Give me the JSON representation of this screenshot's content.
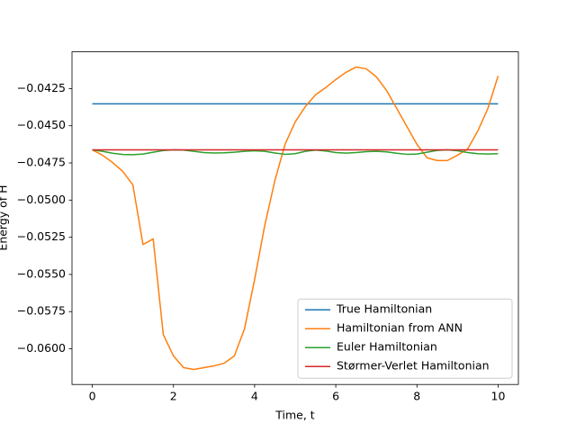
{
  "chart_data": {
    "type": "line",
    "xlabel": "Time, t",
    "ylabel": "Energy of H",
    "x": [
      0,
      0.25,
      0.5,
      0.75,
      1,
      1.25,
      1.5,
      1.75,
      2,
      2.25,
      2.5,
      2.75,
      3,
      3.25,
      3.5,
      3.75,
      4,
      4.25,
      4.5,
      4.75,
      5,
      5.25,
      5.5,
      5.75,
      6,
      6.25,
      6.5,
      6.75,
      7,
      7.25,
      7.5,
      7.75,
      8,
      8.25,
      8.5,
      8.75,
      9,
      9.25,
      9.5,
      9.75,
      10
    ],
    "series": [
      {
        "name": "True Hamiltonian",
        "color": "#1f77b4",
        "values": [
          -0.04353,
          -0.04353,
          -0.04353,
          -0.04353,
          -0.04353,
          -0.04353,
          -0.04353,
          -0.04353,
          -0.04353,
          -0.04353,
          -0.04353,
          -0.04353,
          -0.04353,
          -0.04353,
          -0.04353,
          -0.04353,
          -0.04353,
          -0.04353,
          -0.04353,
          -0.04353,
          -0.04353,
          -0.04353,
          -0.04353,
          -0.04353,
          -0.04353,
          -0.04353,
          -0.04353,
          -0.04353,
          -0.04353,
          -0.04353,
          -0.04353,
          -0.04353,
          -0.04353,
          -0.04353,
          -0.04353,
          -0.04353,
          -0.04353,
          -0.04353,
          -0.04353,
          -0.04353,
          -0.04353
        ]
      },
      {
        "name": "Hamiltonian from ANN",
        "color": "#ff7f0e",
        "values": [
          -0.04662,
          -0.04698,
          -0.04747,
          -0.04807,
          -0.04898,
          -0.05299,
          -0.05261,
          -0.05905,
          -0.06048,
          -0.06127,
          -0.06139,
          -0.06127,
          -0.06115,
          -0.06097,
          -0.06048,
          -0.05867,
          -0.05534,
          -0.0517,
          -0.04868,
          -0.04625,
          -0.04474,
          -0.04371,
          -0.04292,
          -0.04244,
          -0.04189,
          -0.04141,
          -0.04105,
          -0.04117,
          -0.04171,
          -0.04262,
          -0.04383,
          -0.04504,
          -0.04625,
          -0.04716,
          -0.04734,
          -0.04734,
          -0.04698,
          -0.04656,
          -0.04535,
          -0.04383,
          -0.04165
        ]
      },
      {
        "name": "Euler Hamiltonian",
        "color": "#2ca02c",
        "values": [
          -0.04662,
          -0.04672,
          -0.04685,
          -0.04693,
          -0.04695,
          -0.0469,
          -0.04678,
          -0.04667,
          -0.04662,
          -0.04664,
          -0.04672,
          -0.0468,
          -0.04683,
          -0.04682,
          -0.04678,
          -0.04672,
          -0.04668,
          -0.04672,
          -0.04683,
          -0.04692,
          -0.04688,
          -0.04672,
          -0.04664,
          -0.0467,
          -0.0468,
          -0.04684,
          -0.0468,
          -0.04674,
          -0.04672,
          -0.04676,
          -0.04685,
          -0.04692,
          -0.0469,
          -0.04678,
          -0.04666,
          -0.04662,
          -0.04668,
          -0.0468,
          -0.04688,
          -0.0469,
          -0.04688
        ]
      },
      {
        "name": "Størmer-Verlet Hamiltonian",
        "color": "#d62728",
        "values": [
          -0.04662,
          -0.04662,
          -0.04662,
          -0.04662,
          -0.04662,
          -0.04662,
          -0.04662,
          -0.04662,
          -0.04662,
          -0.04662,
          -0.04662,
          -0.04662,
          -0.04662,
          -0.04662,
          -0.04662,
          -0.04662,
          -0.04662,
          -0.04662,
          -0.04662,
          -0.04662,
          -0.04662,
          -0.04662,
          -0.04662,
          -0.04662,
          -0.04662,
          -0.04662,
          -0.04662,
          -0.04662,
          -0.04662,
          -0.04662,
          -0.04662,
          -0.04662,
          -0.04662,
          -0.04662,
          -0.04662,
          -0.04662,
          -0.04662,
          -0.04662,
          -0.04662,
          -0.04662,
          -0.04662
        ]
      }
    ],
    "xlim": [
      -0.5,
      10.5
    ],
    "xticks": [
      0,
      2,
      4,
      6,
      8,
      10
    ],
    "ylim": [
      -0.0624,
      -0.04003
    ],
    "yticks": [
      {
        "value": -0.0425,
        "label": "−0.0425"
      },
      {
        "value": -0.045,
        "label": "−0.0450"
      },
      {
        "value": -0.0475,
        "label": "−0.0475"
      },
      {
        "value": -0.05,
        "label": "−0.0500"
      },
      {
        "value": -0.0525,
        "label": "−0.0525"
      },
      {
        "value": -0.055,
        "label": "−0.0550"
      },
      {
        "value": -0.0575,
        "label": "−0.0575"
      },
      {
        "value": -0.06,
        "label": "−0.0600"
      }
    ],
    "legend": "lower right",
    "grid": false
  }
}
